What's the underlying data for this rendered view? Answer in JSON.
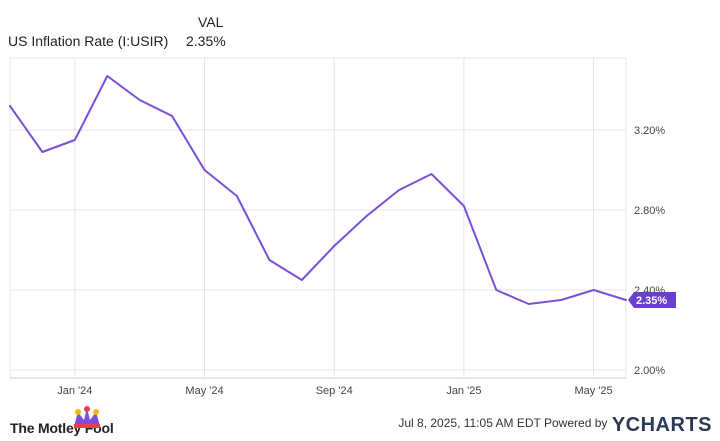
{
  "legend": {
    "header": "VAL",
    "series_name": "US Inflation Rate (I:USIR)",
    "series_value": "2.35%"
  },
  "footer": {
    "brand": "The Motley Fool",
    "credit": "Jul 8, 2025, 11:05 AM EDT Powered by",
    "logo": "YCHARTS"
  },
  "colors": {
    "line": "#7b4fd6",
    "badge": "#6a3fcf",
    "grid": "#e4e4e4",
    "axis_text": "#444444"
  },
  "chart_data": {
    "type": "line",
    "title": "",
    "xlabel": "",
    "ylabel": "",
    "x": [
      "2023-11",
      "2023-12",
      "2024-01",
      "2024-02",
      "2024-03",
      "2024-04",
      "2024-05",
      "2024-06",
      "2024-07",
      "2024-08",
      "2024-09",
      "2024-10",
      "2024-11",
      "2024-12",
      "2025-01",
      "2025-02",
      "2025-03",
      "2025-04",
      "2025-05",
      "2025-06"
    ],
    "series": [
      {
        "name": "US Inflation Rate (I:USIR)",
        "values": [
          3.32,
          3.09,
          3.15,
          3.47,
          3.35,
          3.27,
          3.0,
          2.87,
          2.55,
          2.45,
          2.62,
          2.77,
          2.9,
          2.98,
          2.82,
          2.4,
          2.33,
          2.35,
          2.4,
          2.35
        ]
      }
    ],
    "x_ticks": [
      {
        "date": "2024-01",
        "label": "Jan '24"
      },
      {
        "date": "2024-05",
        "label": "May '24"
      },
      {
        "date": "2024-09",
        "label": "Sep '24"
      },
      {
        "date": "2025-01",
        "label": "Jan '25"
      },
      {
        "date": "2025-05",
        "label": "May '25"
      }
    ],
    "y_ticks": [
      "2.00%",
      "2.40%",
      "2.80%",
      "3.20%"
    ],
    "y_tick_values": [
      2.0,
      2.4,
      2.8,
      3.2
    ],
    "ylim": [
      1.96,
      3.56
    ],
    "last_value_label": "2.35%",
    "grid": true,
    "legend": "top-left"
  }
}
